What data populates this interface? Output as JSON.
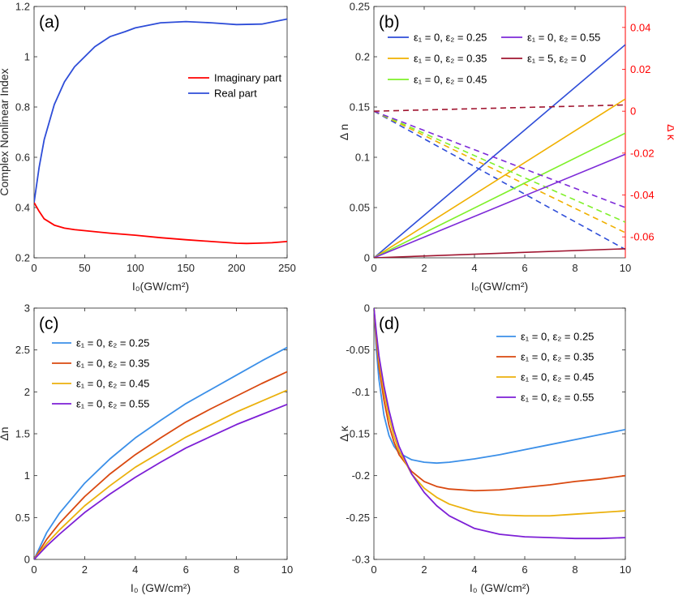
{
  "chart_data": [
    {
      "panel": "(a)",
      "type": "line",
      "xlabel": "I₀(GW/cm²)",
      "ylabel": "Complex Nonlinear Index",
      "xlim": [
        0,
        250
      ],
      "ylim": [
        0.2,
        1.2
      ],
      "xticks": [
        0,
        50,
        100,
        150,
        200,
        250
      ],
      "yticks": [
        0.2,
        0.4,
        0.6,
        0.8,
        1.0,
        1.2
      ],
      "ytick_labels": [
        "0.2",
        "0.4",
        "0.6",
        "0.8",
        "1",
        "1.2"
      ],
      "legend_position": "center-right",
      "series": [
        {
          "name": "Imaginary part",
          "color": "#ff0000",
          "x": [
            0,
            5,
            10,
            20,
            30,
            40,
            50,
            75,
            100,
            125,
            150,
            175,
            200,
            210,
            220,
            235,
            250
          ],
          "y": [
            0.42,
            0.385,
            0.355,
            0.33,
            0.318,
            0.312,
            0.308,
            0.298,
            0.29,
            0.28,
            0.272,
            0.265,
            0.258,
            0.257,
            0.258,
            0.26,
            0.265
          ]
        },
        {
          "name": "Real part",
          "color": "#2e4dd8",
          "x": [
            0,
            5,
            10,
            20,
            30,
            40,
            50,
            60,
            75,
            90,
            100,
            125,
            150,
            175,
            200,
            225,
            250
          ],
          "y": [
            0.42,
            0.56,
            0.67,
            0.81,
            0.9,
            0.96,
            1.0,
            1.04,
            1.08,
            1.1,
            1.115,
            1.135,
            1.14,
            1.135,
            1.128,
            1.13,
            1.15
          ]
        }
      ]
    },
    {
      "panel": "(b)",
      "type": "line",
      "xlabel": "I₀(GW/cm²)",
      "ylabel": "Δ n",
      "ylabel_right": "Δ κ",
      "xlim": [
        0,
        10
      ],
      "ylim": [
        0,
        0.25
      ],
      "ylim_right": [
        -0.07,
        0.05
      ],
      "xticks": [
        0,
        2,
        4,
        6,
        8,
        10
      ],
      "yticks": [
        0,
        0.05,
        0.1,
        0.15,
        0.2,
        0.25
      ],
      "ytick_labels": [
        "0",
        "0.05",
        "0.1",
        "0.15",
        "0.2",
        "0.25"
      ],
      "yticks_right": [
        -0.06,
        -0.04,
        -0.02,
        0,
        0.02,
        0.04
      ],
      "ytick_labels_right": [
        "-0.06",
        "-0.04",
        "-0.02",
        "0",
        "0.02",
        "0.04"
      ],
      "right_axis_color": "#ff0000",
      "legend_position": "top",
      "series": [
        {
          "name": "ε₁ = 0, ε₂ = 0.25",
          "color": "#2e4dd8",
          "x": [
            0,
            10
          ],
          "delta_n": [
            0,
            0.212
          ],
          "delta_kappa": [
            0,
            -0.066
          ]
        },
        {
          "name": "ε₁ = 0, ε₂ = 0.35",
          "color": "#f0b000",
          "x": [
            0,
            10
          ],
          "delta_n": [
            0,
            0.158
          ],
          "delta_kappa": [
            0,
            -0.058
          ]
        },
        {
          "name": "ε₁ = 0, ε₂ = 0.45",
          "color": "#7ff02a",
          "x": [
            0,
            10
          ],
          "delta_n": [
            0,
            0.124
          ],
          "delta_kappa": [
            0,
            -0.053
          ]
        },
        {
          "name": "ε₁ = 0, ε₂ = 0.55",
          "color": "#7d2ad8",
          "x": [
            0,
            10
          ],
          "delta_n": [
            0,
            0.103
          ],
          "delta_kappa": [
            0,
            -0.046
          ]
        },
        {
          "name": "ε₁ = 5, ε₂ = 0",
          "color": "#a01530",
          "x": [
            0,
            10
          ],
          "delta_n": [
            0,
            0.009
          ],
          "delta_kappa": [
            0,
            0.003
          ]
        }
      ]
    },
    {
      "panel": "(c)",
      "type": "line",
      "xlabel": "I₀ (GW/cm²)",
      "ylabel": "Δn",
      "xlim": [
        0,
        10
      ],
      "ylim": [
        0,
        3
      ],
      "xticks": [
        0,
        2,
        4,
        6,
        8,
        10
      ],
      "yticks": [
        0,
        0.5,
        1,
        1.5,
        2,
        2.5,
        3
      ],
      "ytick_labels": [
        "0",
        "0.5",
        "1",
        "1.5",
        "2",
        "2.5",
        "3"
      ],
      "legend_position": "top-left",
      "series": [
        {
          "name": "ε₁ = 0, ε₂ = 0.25",
          "color": "#3b8fe8",
          "x": [
            0,
            0.5,
            1,
            2,
            3,
            4,
            5,
            6,
            7,
            8,
            9,
            10
          ],
          "y": [
            0,
            0.32,
            0.55,
            0.91,
            1.2,
            1.45,
            1.66,
            1.86,
            2.03,
            2.2,
            2.37,
            2.53
          ]
        },
        {
          "name": "ε₁ = 0, ε₂ = 0.35",
          "color": "#d9480f",
          "x": [
            0,
            0.5,
            1,
            2,
            3,
            4,
            5,
            6,
            7,
            8,
            9,
            10
          ],
          "y": [
            0,
            0.24,
            0.43,
            0.75,
            1.02,
            1.25,
            1.45,
            1.64,
            1.8,
            1.95,
            2.1,
            2.24
          ]
        },
        {
          "name": "ε₁ = 0, ε₂ = 0.45",
          "color": "#ebb10d",
          "x": [
            0,
            0.5,
            1,
            2,
            3,
            4,
            5,
            6,
            7,
            8,
            9,
            10
          ],
          "y": [
            0,
            0.19,
            0.35,
            0.64,
            0.88,
            1.1,
            1.28,
            1.46,
            1.61,
            1.76,
            1.89,
            2.02
          ]
        },
        {
          "name": "ε₁ = 0, ε₂ = 0.55",
          "color": "#7d1fd6",
          "x": [
            0,
            0.5,
            1,
            2,
            3,
            4,
            5,
            6,
            7,
            8,
            9,
            10
          ],
          "y": [
            0,
            0.16,
            0.3,
            0.56,
            0.78,
            0.98,
            1.16,
            1.33,
            1.47,
            1.61,
            1.73,
            1.85
          ]
        }
      ]
    },
    {
      "panel": "(d)",
      "type": "line",
      "xlabel": "I₀ (GW/cm²)",
      "ylabel": "Δ κ",
      "xlim": [
        0,
        10
      ],
      "ylim": [
        -0.3,
        0
      ],
      "xticks": [
        0,
        2,
        4,
        6,
        8,
        10
      ],
      "yticks": [
        -0.3,
        -0.25,
        -0.2,
        -0.15,
        -0.1,
        -0.05,
        0
      ],
      "ytick_labels": [
        "-0.3",
        "-0.25",
        "-0.2",
        "-0.15",
        "-0.1",
        "-0.05",
        "0"
      ],
      "legend_position": "top-right",
      "series": [
        {
          "name": "ε₁ = 0, ε₂ = 0.25",
          "color": "#3b8fe8",
          "x": [
            0,
            0.1,
            0.2,
            0.4,
            0.6,
            0.8,
            1,
            1.5,
            2,
            2.5,
            3,
            4,
            5,
            6,
            7,
            8,
            9,
            10
          ],
          "y": [
            0,
            -0.05,
            -0.085,
            -0.128,
            -0.152,
            -0.165,
            -0.173,
            -0.181,
            -0.184,
            -0.185,
            -0.184,
            -0.18,
            -0.175,
            -0.169,
            -0.163,
            -0.157,
            -0.151,
            -0.145
          ]
        },
        {
          "name": "ε₁ = 0, ε₂ = 0.35",
          "color": "#d9480f",
          "x": [
            0,
            0.1,
            0.2,
            0.4,
            0.6,
            0.8,
            1,
            1.5,
            2,
            2.5,
            3,
            4,
            5,
            6,
            7,
            8,
            9,
            10
          ],
          "y": [
            0,
            -0.04,
            -0.07,
            -0.11,
            -0.14,
            -0.16,
            -0.175,
            -0.195,
            -0.207,
            -0.213,
            -0.216,
            -0.218,
            -0.217,
            -0.214,
            -0.211,
            -0.207,
            -0.204,
            -0.2
          ]
        },
        {
          "name": "ε₁ = 0, ε₂ = 0.45",
          "color": "#ebb10d",
          "x": [
            0,
            0.1,
            0.2,
            0.4,
            0.6,
            0.8,
            1,
            1.5,
            2,
            2.5,
            3,
            4,
            5,
            6,
            7,
            8,
            9,
            10
          ],
          "y": [
            0,
            -0.035,
            -0.063,
            -0.1,
            -0.13,
            -0.153,
            -0.17,
            -0.198,
            -0.215,
            -0.226,
            -0.234,
            -0.243,
            -0.247,
            -0.248,
            -0.248,
            -0.246,
            -0.244,
            -0.242
          ]
        },
        {
          "name": "ε₁ = 0, ε₂ = 0.55",
          "color": "#7d1fd6",
          "x": [
            0,
            0.1,
            0.2,
            0.4,
            0.6,
            0.8,
            1,
            1.5,
            2,
            2.5,
            3,
            4,
            5,
            6,
            7,
            8,
            9,
            10
          ],
          "y": [
            0,
            -0.03,
            -0.057,
            -0.093,
            -0.122,
            -0.146,
            -0.165,
            -0.198,
            -0.22,
            -0.236,
            -0.248,
            -0.263,
            -0.27,
            -0.273,
            -0.274,
            -0.275,
            -0.275,
            -0.274
          ]
        }
      ]
    }
  ]
}
